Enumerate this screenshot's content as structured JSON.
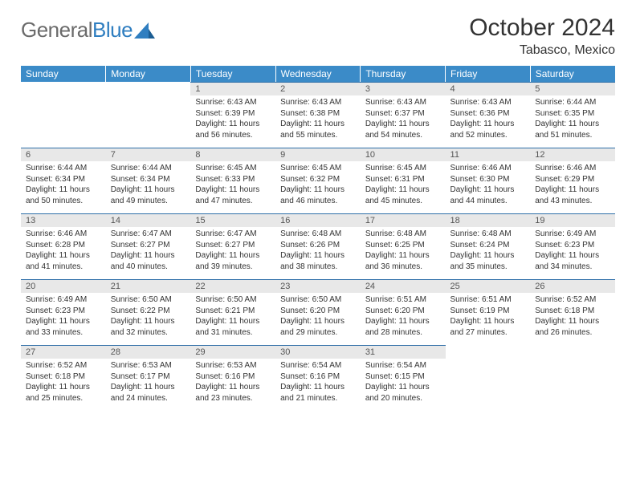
{
  "brand": {
    "part1": "General",
    "part2": "Blue"
  },
  "title": "October 2024",
  "location": "Tabasco, Mexico",
  "colors": {
    "header_bg": "#3b8bc8",
    "header_text": "#ffffff",
    "daynum_bg": "#e8e8e8",
    "row_border": "#2f6fa8",
    "logo_gray": "#6b6b6b",
    "logo_blue": "#2f7ec0",
    "text": "#333333"
  },
  "weekdays": [
    "Sunday",
    "Monday",
    "Tuesday",
    "Wednesday",
    "Thursday",
    "Friday",
    "Saturday"
  ],
  "weeks": [
    [
      null,
      null,
      {
        "n": "1",
        "sr": "6:43 AM",
        "ss": "6:39 PM",
        "dl": "11 hours and 56 minutes."
      },
      {
        "n": "2",
        "sr": "6:43 AM",
        "ss": "6:38 PM",
        "dl": "11 hours and 55 minutes."
      },
      {
        "n": "3",
        "sr": "6:43 AM",
        "ss": "6:37 PM",
        "dl": "11 hours and 54 minutes."
      },
      {
        "n": "4",
        "sr": "6:43 AM",
        "ss": "6:36 PM",
        "dl": "11 hours and 52 minutes."
      },
      {
        "n": "5",
        "sr": "6:44 AM",
        "ss": "6:35 PM",
        "dl": "11 hours and 51 minutes."
      }
    ],
    [
      {
        "n": "6",
        "sr": "6:44 AM",
        "ss": "6:34 PM",
        "dl": "11 hours and 50 minutes."
      },
      {
        "n": "7",
        "sr": "6:44 AM",
        "ss": "6:34 PM",
        "dl": "11 hours and 49 minutes."
      },
      {
        "n": "8",
        "sr": "6:45 AM",
        "ss": "6:33 PM",
        "dl": "11 hours and 47 minutes."
      },
      {
        "n": "9",
        "sr": "6:45 AM",
        "ss": "6:32 PM",
        "dl": "11 hours and 46 minutes."
      },
      {
        "n": "10",
        "sr": "6:45 AM",
        "ss": "6:31 PM",
        "dl": "11 hours and 45 minutes."
      },
      {
        "n": "11",
        "sr": "6:46 AM",
        "ss": "6:30 PM",
        "dl": "11 hours and 44 minutes."
      },
      {
        "n": "12",
        "sr": "6:46 AM",
        "ss": "6:29 PM",
        "dl": "11 hours and 43 minutes."
      }
    ],
    [
      {
        "n": "13",
        "sr": "6:46 AM",
        "ss": "6:28 PM",
        "dl": "11 hours and 41 minutes."
      },
      {
        "n": "14",
        "sr": "6:47 AM",
        "ss": "6:27 PM",
        "dl": "11 hours and 40 minutes."
      },
      {
        "n": "15",
        "sr": "6:47 AM",
        "ss": "6:27 PM",
        "dl": "11 hours and 39 minutes."
      },
      {
        "n": "16",
        "sr": "6:48 AM",
        "ss": "6:26 PM",
        "dl": "11 hours and 38 minutes."
      },
      {
        "n": "17",
        "sr": "6:48 AM",
        "ss": "6:25 PM",
        "dl": "11 hours and 36 minutes."
      },
      {
        "n": "18",
        "sr": "6:48 AM",
        "ss": "6:24 PM",
        "dl": "11 hours and 35 minutes."
      },
      {
        "n": "19",
        "sr": "6:49 AM",
        "ss": "6:23 PM",
        "dl": "11 hours and 34 minutes."
      }
    ],
    [
      {
        "n": "20",
        "sr": "6:49 AM",
        "ss": "6:23 PM",
        "dl": "11 hours and 33 minutes."
      },
      {
        "n": "21",
        "sr": "6:50 AM",
        "ss": "6:22 PM",
        "dl": "11 hours and 32 minutes."
      },
      {
        "n": "22",
        "sr": "6:50 AM",
        "ss": "6:21 PM",
        "dl": "11 hours and 31 minutes."
      },
      {
        "n": "23",
        "sr": "6:50 AM",
        "ss": "6:20 PM",
        "dl": "11 hours and 29 minutes."
      },
      {
        "n": "24",
        "sr": "6:51 AM",
        "ss": "6:20 PM",
        "dl": "11 hours and 28 minutes."
      },
      {
        "n": "25",
        "sr": "6:51 AM",
        "ss": "6:19 PM",
        "dl": "11 hours and 27 minutes."
      },
      {
        "n": "26",
        "sr": "6:52 AM",
        "ss": "6:18 PM",
        "dl": "11 hours and 26 minutes."
      }
    ],
    [
      {
        "n": "27",
        "sr": "6:52 AM",
        "ss": "6:18 PM",
        "dl": "11 hours and 25 minutes."
      },
      {
        "n": "28",
        "sr": "6:53 AM",
        "ss": "6:17 PM",
        "dl": "11 hours and 24 minutes."
      },
      {
        "n": "29",
        "sr": "6:53 AM",
        "ss": "6:16 PM",
        "dl": "11 hours and 23 minutes."
      },
      {
        "n": "30",
        "sr": "6:54 AM",
        "ss": "6:16 PM",
        "dl": "11 hours and 21 minutes."
      },
      {
        "n": "31",
        "sr": "6:54 AM",
        "ss": "6:15 PM",
        "dl": "11 hours and 20 minutes."
      },
      null,
      null
    ]
  ],
  "labels": {
    "sunrise": "Sunrise:",
    "sunset": "Sunset:",
    "daylight": "Daylight:"
  }
}
